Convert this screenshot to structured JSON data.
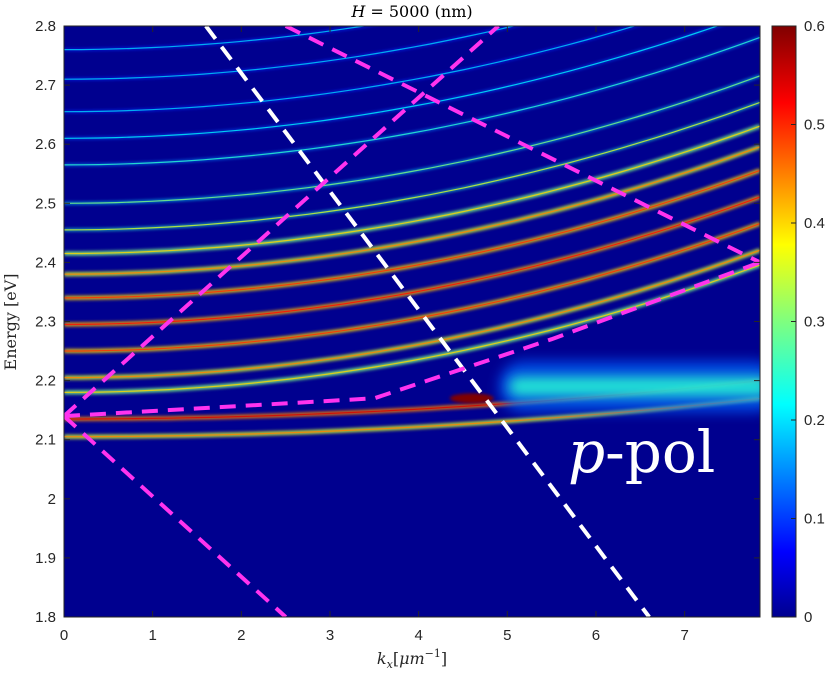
{
  "chart_data": {
    "type": "heatmap",
    "title": "H = 5000 (nm)",
    "title_var": "H",
    "title_rest": " = 5000 (nm)",
    "xlabel_var": "k",
    "xlabel_sub": "x",
    "xlabel_unit_open": "[",
    "xlabel_unit_mu": "μm",
    "xlabel_unit_exp": "−1",
    "xlabel_unit_close": "]",
    "ylabel": "Energy [eV]",
    "xlim": [
      0,
      7.85
    ],
    "ylim": [
      1.8,
      2.8
    ],
    "xticks": [
      0,
      1,
      2,
      3,
      4,
      5,
      6,
      7
    ],
    "yticks": [
      1.8,
      1.9,
      2.0,
      2.1,
      2.2,
      2.3,
      2.4,
      2.5,
      2.6,
      2.7,
      2.8
    ],
    "ytick_labels": [
      "1.8",
      "1.9",
      "2",
      "2.1",
      "2.2",
      "2.3",
      "2.4",
      "2.5",
      "2.6",
      "2.7",
      "2.8"
    ],
    "colorbar": {
      "min": 0,
      "max": 0.6,
      "ticks": [
        0,
        0.1,
        0.2,
        0.3,
        0.4,
        0.5,
        0.6
      ],
      "tick_labels": [
        "0",
        "0.1",
        "0.2",
        "0.3",
        "0.4",
        "0.5",
        "0.6"
      ],
      "colormap": "jet"
    },
    "annotation_var": "p",
    "annotation_rest": "-pol",
    "guide_lines": [
      {
        "name": "light-line",
        "color": "#ffffff",
        "dash": true,
        "points": [
          [
            1.6,
            2.8
          ],
          [
            6.6,
            1.8
          ]
        ]
      },
      {
        "name": "magenta-line-down",
        "color": "#ff33ee",
        "dash": true,
        "points": [
          [
            0,
            2.14
          ],
          [
            2.5,
            1.8
          ]
        ]
      },
      {
        "name": "magenta-line-up",
        "color": "#ff33ee",
        "dash": true,
        "points": [
          [
            0,
            2.14
          ],
          [
            4.9,
            2.8
          ]
        ]
      },
      {
        "name": "magenta-line-top",
        "color": "#ff33ee",
        "dash": true,
        "points": [
          [
            2.5,
            2.8
          ],
          [
            7.85,
            2.4
          ]
        ]
      },
      {
        "name": "magenta-line-mid",
        "color": "#ff33ee",
        "dash": true,
        "points": [
          [
            0,
            2.14
          ],
          [
            3.5,
            2.17
          ],
          [
            5.5,
            2.27
          ],
          [
            7.85,
            2.4
          ]
        ]
      }
    ],
    "horizontal_bands": [
      {
        "energy": 2.105,
        "intensity": 0.35
      },
      {
        "energy": 2.135,
        "intensity": 0.45
      },
      {
        "energy": 2.18,
        "intensity": 0.3
      },
      {
        "energy": 2.205,
        "intensity": 0.35
      },
      {
        "energy": 2.25,
        "intensity": 0.4
      },
      {
        "energy": 2.295,
        "intensity": 0.42
      },
      {
        "energy": 2.34,
        "intensity": 0.4
      },
      {
        "energy": 2.38,
        "intensity": 0.35
      },
      {
        "energy": 2.415,
        "intensity": 0.3
      },
      {
        "energy": 2.455,
        "intensity": 0.25
      },
      {
        "energy": 2.5,
        "intensity": 0.2
      },
      {
        "energy": 2.565,
        "intensity": 0.15
      },
      {
        "energy": 2.61,
        "intensity": 0.12
      },
      {
        "energy": 2.655,
        "intensity": 0.1
      },
      {
        "energy": 2.71,
        "intensity": 0.1
      },
      {
        "energy": 2.76,
        "intensity": 0.1
      }
    ],
    "features": [
      {
        "name": "bright-spot",
        "x": 4.6,
        "y": 2.17,
        "intensity": 0.6
      },
      {
        "name": "plasmon-band",
        "x_range": [
          4.9,
          7.85
        ],
        "y": 2.19,
        "intensity": 0.25
      }
    ]
  }
}
